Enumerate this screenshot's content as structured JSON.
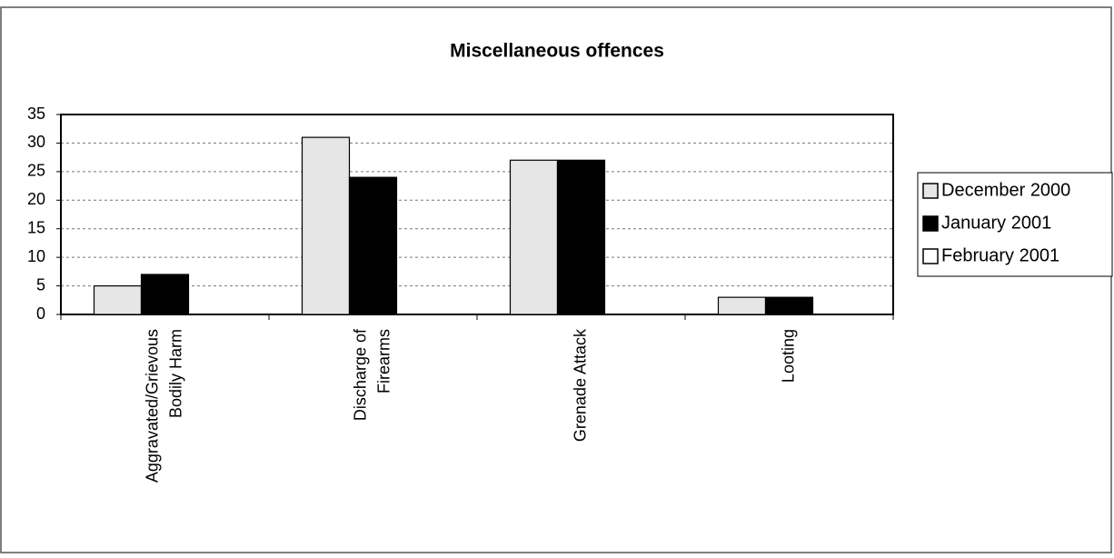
{
  "chart_data": {
    "type": "bar",
    "title": "Miscellaneous offences",
    "categories": [
      [
        "Aggravated/Grievous",
        "Bodily Harm"
      ],
      [
        "Discharge of",
        "Firearms"
      ],
      [
        "Grenade Attack"
      ],
      [
        "Looting"
      ]
    ],
    "series": [
      {
        "name": "December 2000",
        "color": "#e6e6e6",
        "values": [
          5,
          31,
          27,
          3
        ]
      },
      {
        "name": "January 2001",
        "color": "#000000",
        "values": [
          7,
          24,
          27,
          3
        ]
      },
      {
        "name": "February 2001",
        "color": "#ffffff",
        "values": [
          0,
          0,
          0,
          0
        ]
      }
    ],
    "ylim": [
      0,
      35
    ],
    "yticks": [
      0,
      5,
      10,
      15,
      20,
      25,
      30,
      35
    ],
    "grid": true,
    "legend": "right"
  }
}
